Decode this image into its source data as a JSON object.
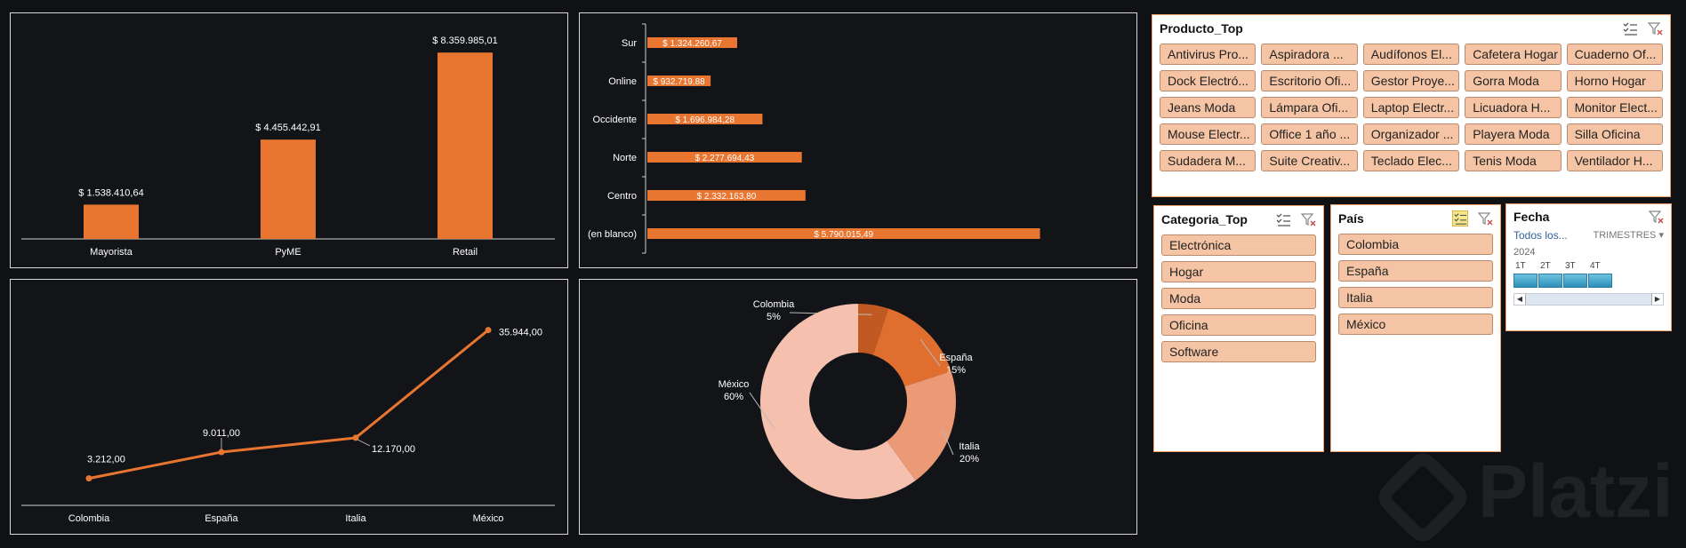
{
  "chart_data": [
    {
      "type": "bar",
      "categories": [
        "Mayorista",
        "PyME",
        "Retail"
      ],
      "values": [
        1538410.64,
        4455442.91,
        8359985.01
      ],
      "value_labels": [
        "$ 1.538.410,64",
        "$ 4.455.442,91",
        "$ 8.359.985,01"
      ],
      "color": "#e87530",
      "grid": false
    },
    {
      "type": "bar",
      "orientation": "horizontal",
      "categories": [
        "Sur",
        "Online",
        "Occidente",
        "Norte",
        "Centro",
        "(en blanco)"
      ],
      "values": [
        1324260.67,
        932719.88,
        1696984.28,
        2277694.43,
        2332163.8,
        5790015.49
      ],
      "value_labels": [
        "$ 1.324.260,67",
        "$ 932.719,88",
        "$ 1.696.984,28",
        "$ 2.277.694,43",
        "$ 2.332.163,80",
        "$ 5.790.015,49"
      ],
      "color": "#e87530",
      "grid": false
    },
    {
      "type": "line",
      "categories": [
        "Colombia",
        "España",
        "Italia",
        "México"
      ],
      "values": [
        3212,
        9011,
        12170,
        35944
      ],
      "value_labels": [
        "3.212,00",
        "9.011,00",
        "12.170,00",
        "35.944,00"
      ],
      "color": "#e87530",
      "grid": false
    },
    {
      "type": "pie",
      "donut": true,
      "labels": [
        "Colombia",
        "España",
        "Italia",
        "México"
      ],
      "values": [
        5,
        15,
        20,
        60
      ],
      "pct_labels": [
        "5%",
        "15%",
        "20%",
        "60%"
      ],
      "colors": [
        "#c05a22",
        "#e06f2f",
        "#ec9a75",
        "#f5c0ad"
      ]
    }
  ],
  "slicers": {
    "producto": {
      "title": "Producto_Top",
      "items": [
        "Antivirus Pro...",
        "Aspiradora ...",
        "Audífonos El...",
        "Cafetera Hogar",
        "Cuaderno Of...",
        "Dock Electró...",
        "Escritorio Ofi...",
        "Gestor Proye...",
        "Gorra Moda",
        "Horno Hogar",
        "Jeans Moda",
        "Lámpara Ofi...",
        "Laptop Electr...",
        "Licuadora H...",
        "Monitor Elect...",
        "Mouse Electr...",
        "Office 1 año ...",
        "Organizador ...",
        "Playera Moda",
        "Silla Oficina",
        "Sudadera M...",
        "Suite Creativ...",
        "Teclado Elec...",
        "Tenis Moda",
        "Ventilador H..."
      ]
    },
    "categoria": {
      "title": "Categoria_Top",
      "items": [
        "Electrónica",
        "Hogar",
        "Moda",
        "Oficina",
        "Software"
      ]
    },
    "pais": {
      "title": "País",
      "items": [
        "Colombia",
        "España",
        "Italia",
        "México"
      ]
    },
    "fecha": {
      "title": "Fecha",
      "selection": "Todos los...",
      "level": "TRIMESTRES",
      "year": "2024",
      "quarters": [
        "1T",
        "2T",
        "3T",
        "4T"
      ]
    }
  },
  "icons": {
    "multiselect": "multi-select-icon",
    "clear_filter": "clear-filter-icon"
  },
  "watermark": "Platzi"
}
